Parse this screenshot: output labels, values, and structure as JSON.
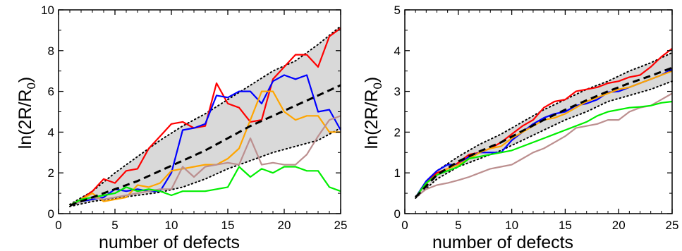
{
  "figure": {
    "panels": [
      {
        "id": "left",
        "xlabel": "number of defects",
        "ylabel_base": "ln(2R/R",
        "ylabel_sub": "0",
        "ylabel_end": ")"
      },
      {
        "id": "right",
        "xlabel": "number of defects",
        "ylabel_base": "ln(2R/R",
        "ylabel_sub": "0",
        "ylabel_end": ")"
      }
    ]
  },
  "chart_data": [
    {
      "type": "line",
      "title": "",
      "xlabel": "number of defects",
      "ylabel": "ln(2R/R0)",
      "xlim": [
        0,
        25
      ],
      "ylim": [
        0,
        10
      ],
      "xticks": [
        0,
        5,
        10,
        15,
        20,
        25
      ],
      "yticks": [
        0,
        2,
        4,
        6,
        8,
        10
      ],
      "grid": false,
      "band": {
        "color": "#d9d9d9",
        "x": [
          1,
          3,
          5,
          7,
          9,
          11,
          13,
          15,
          17,
          19,
          21,
          23,
          25
        ],
        "lower": [
          0.35,
          0.6,
          0.75,
          0.9,
          1.05,
          1.3,
          1.7,
          2.2,
          2.6,
          3.0,
          3.3,
          3.6,
          4.2
        ],
        "upper": [
          0.45,
          1.1,
          2.0,
          2.8,
          3.6,
          4.3,
          4.9,
          5.6,
          6.3,
          7.0,
          7.5,
          8.3,
          9.2
        ]
      },
      "series": [
        {
          "color": "#000000",
          "style": "dashed",
          "x": [
            1,
            3,
            5,
            7,
            9,
            11,
            13,
            15,
            17,
            19,
            21,
            23,
            25
          ],
          "values": [
            0.4,
            0.8,
            1.2,
            1.6,
            2.1,
            2.6,
            3.1,
            3.7,
            4.3,
            4.8,
            5.3,
            5.8,
            6.3
          ]
        },
        {
          "color": "#ff0000",
          "style": "solid",
          "x": [
            1,
            2,
            3,
            4,
            5,
            6,
            7,
            8,
            9,
            10,
            11,
            12,
            13,
            14,
            15,
            16,
            17,
            18,
            19,
            20,
            21,
            22,
            23,
            24,
            25
          ],
          "values": [
            0.4,
            0.7,
            1.1,
            1.7,
            1.5,
            2.1,
            2.2,
            3.2,
            3.8,
            4.4,
            4.5,
            4.2,
            4.3,
            6.4,
            5.4,
            5.2,
            4.5,
            4.6,
            6.6,
            7.2,
            7.8,
            7.8,
            7.2,
            8.7,
            9.1
          ]
        },
        {
          "color": "#0000ff",
          "style": "solid",
          "x": [
            1,
            2,
            3,
            4,
            5,
            6,
            7,
            8,
            9,
            10,
            11,
            12,
            13,
            14,
            15,
            16,
            17,
            18,
            19,
            20,
            21,
            22,
            23,
            24,
            25
          ],
          "values": [
            0.4,
            0.6,
            0.7,
            0.8,
            1.2,
            1.1,
            1.2,
            1.1,
            1.1,
            2.0,
            4.1,
            4.2,
            4.4,
            5.8,
            5.7,
            6.0,
            6.0,
            5.4,
            6.5,
            6.8,
            6.6,
            6.8,
            5.0,
            5.1,
            4.1
          ]
        },
        {
          "color": "#ffa500",
          "style": "solid",
          "x": [
            1,
            2,
            3,
            4,
            5,
            6,
            7,
            8,
            9,
            10,
            11,
            12,
            13,
            14,
            15,
            16,
            17,
            18,
            19,
            20,
            21,
            22,
            23,
            24,
            25
          ],
          "values": [
            0.4,
            0.7,
            1.0,
            0.6,
            0.7,
            0.8,
            1.4,
            1.3,
            1.5,
            2.1,
            2.2,
            2.3,
            2.4,
            2.4,
            2.7,
            3.2,
            4.6,
            6.0,
            6.0,
            5.0,
            4.6,
            4.8,
            4.8,
            4.0,
            4.0
          ]
        },
        {
          "color": "#bc8f8f",
          "style": "solid",
          "x": [
            1,
            2,
            3,
            4,
            5,
            6,
            7,
            8,
            9,
            10,
            11,
            12,
            13,
            14,
            15,
            16,
            17,
            18,
            19,
            20,
            21,
            22,
            23,
            24,
            25
          ],
          "values": [
            0.4,
            0.6,
            0.8,
            0.7,
            0.8,
            0.9,
            1.0,
            1.1,
            1.2,
            1.2,
            2.3,
            1.8,
            2.3,
            2.4,
            2.5,
            2.4,
            3.7,
            2.4,
            2.5,
            2.4,
            2.4,
            2.9,
            3.8,
            4.6,
            4.8
          ]
        },
        {
          "color": "#00ee00",
          "style": "solid",
          "x": [
            1,
            2,
            3,
            4,
            5,
            6,
            7,
            8,
            9,
            10,
            11,
            12,
            13,
            14,
            15,
            16,
            17,
            18,
            19,
            20,
            21,
            22,
            23,
            24,
            25
          ],
          "values": [
            0.4,
            0.7,
            0.8,
            0.9,
            1.0,
            1.3,
            1.1,
            1.2,
            1.1,
            0.9,
            1.1,
            1.1,
            1.1,
            1.2,
            1.3,
            2.3,
            1.8,
            2.2,
            2.0,
            2.3,
            2.3,
            2.1,
            2.1,
            1.3,
            1.1
          ]
        }
      ]
    },
    {
      "type": "line",
      "title": "",
      "xlabel": "number of defects",
      "ylabel": "ln(2R/R0)",
      "xlim": [
        0,
        25
      ],
      "ylim": [
        0,
        5
      ],
      "xticks": [
        0,
        5,
        10,
        15,
        20,
        25
      ],
      "yticks": [
        0,
        1,
        2,
        3,
        4,
        5
      ],
      "grid": false,
      "band": {
        "color": "#d9d9d9",
        "x": [
          1,
          3,
          5,
          7,
          9,
          11,
          13,
          15,
          17,
          19,
          21,
          23,
          25
        ],
        "lower": [
          0.38,
          0.85,
          1.15,
          1.35,
          1.55,
          1.8,
          2.05,
          2.3,
          2.5,
          2.75,
          2.9,
          3.05,
          3.25
        ],
        "upper": [
          0.42,
          1.05,
          1.4,
          1.7,
          1.95,
          2.25,
          2.55,
          2.8,
          3.05,
          3.25,
          3.5,
          3.7,
          3.95
        ]
      },
      "series": [
        {
          "color": "#000000",
          "style": "dashed",
          "x": [
            1,
            3,
            5,
            7,
            9,
            11,
            13,
            15,
            17,
            19,
            21,
            23,
            25
          ],
          "values": [
            0.4,
            0.95,
            1.28,
            1.53,
            1.75,
            2.03,
            2.3,
            2.55,
            2.78,
            3.0,
            3.2,
            3.38,
            3.58
          ]
        },
        {
          "color": "#ff0000",
          "style": "solid",
          "x": [
            1,
            2,
            3,
            4,
            5,
            6,
            7,
            8,
            9,
            10,
            11,
            12,
            13,
            14,
            15,
            16,
            17,
            18,
            19,
            20,
            21,
            22,
            23,
            24,
            25
          ],
          "values": [
            0.4,
            0.75,
            1.0,
            1.1,
            1.25,
            1.45,
            1.5,
            1.6,
            1.75,
            1.95,
            2.15,
            2.3,
            2.6,
            2.75,
            2.8,
            3.0,
            3.05,
            3.1,
            3.2,
            3.25,
            3.35,
            3.4,
            3.6,
            3.85,
            4.05
          ]
        },
        {
          "color": "#0000ff",
          "style": "solid",
          "x": [
            1,
            2,
            3,
            4,
            5,
            6,
            7,
            8,
            9,
            10,
            11,
            12,
            13,
            14,
            15,
            16,
            17,
            18,
            19,
            20,
            21,
            22,
            23,
            24,
            25
          ],
          "values": [
            0.4,
            0.8,
            1.05,
            1.2,
            1.2,
            1.4,
            1.5,
            1.5,
            1.5,
            1.8,
            2.0,
            2.2,
            2.35,
            2.45,
            2.5,
            2.65,
            2.7,
            2.8,
            2.98,
            3.0,
            3.1,
            3.2,
            3.3,
            3.4,
            3.55
          ]
        },
        {
          "color": "#ffa500",
          "style": "solid",
          "x": [
            1,
            2,
            3,
            4,
            5,
            6,
            7,
            8,
            9,
            10,
            11,
            12,
            13,
            14,
            15,
            16,
            17,
            18,
            19,
            20,
            21,
            22,
            23,
            24,
            25
          ],
          "values": [
            0.4,
            0.75,
            0.95,
            1.1,
            1.2,
            1.35,
            1.5,
            1.6,
            1.65,
            1.85,
            2.0,
            2.15,
            2.3,
            2.35,
            2.45,
            2.6,
            2.75,
            2.85,
            2.95,
            3.05,
            3.1,
            3.2,
            3.3,
            3.4,
            3.5
          ]
        },
        {
          "color": "#bc8f8f",
          "style": "solid",
          "x": [
            1,
            2,
            3,
            4,
            5,
            6,
            7,
            8,
            9,
            10,
            11,
            12,
            13,
            14,
            15,
            16,
            17,
            18,
            19,
            20,
            21,
            22,
            23,
            24,
            25
          ],
          "values": [
            0.4,
            0.6,
            0.7,
            0.75,
            0.82,
            0.9,
            1.0,
            1.1,
            1.15,
            1.2,
            1.35,
            1.5,
            1.6,
            1.75,
            1.9,
            2.1,
            2.15,
            2.2,
            2.3,
            2.3,
            2.5,
            2.6,
            2.65,
            2.8,
            2.95
          ]
        },
        {
          "color": "#00ee00",
          "style": "solid",
          "x": [
            1,
            2,
            3,
            4,
            5,
            6,
            7,
            8,
            9,
            10,
            11,
            12,
            13,
            14,
            15,
            16,
            17,
            18,
            19,
            20,
            21,
            22,
            23,
            24,
            25
          ],
          "values": [
            0.4,
            0.75,
            0.95,
            1.05,
            1.15,
            1.35,
            1.4,
            1.45,
            1.5,
            1.55,
            1.65,
            1.75,
            1.85,
            1.95,
            2.05,
            2.15,
            2.25,
            2.4,
            2.5,
            2.55,
            2.6,
            2.62,
            2.65,
            2.72,
            2.75
          ]
        }
      ]
    }
  ]
}
